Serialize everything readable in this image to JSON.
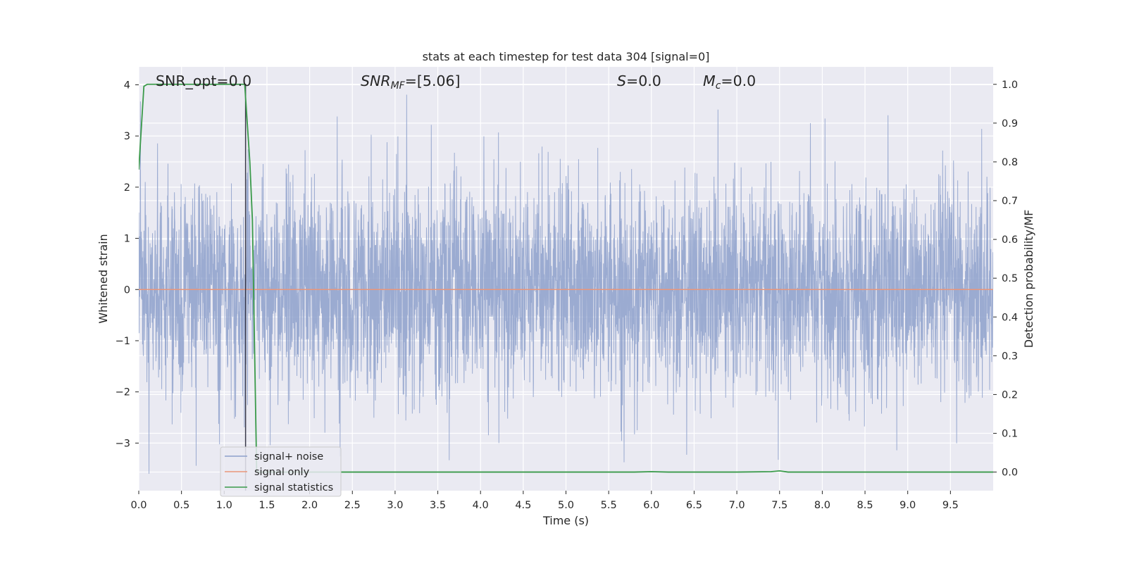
{
  "chart_data": {
    "type": "line",
    "title": "stats at each timestep for test data 304 [signal=0]",
    "xlabel": "Time (s)",
    "ylabel": "Whitened strain",
    "y2label": "Detection probability/MF",
    "xlim": [
      0.0,
      10.0
    ],
    "ylim": [
      -3.93,
      4.35
    ],
    "y2lim": [
      -0.048,
      1.045
    ],
    "x_ticks": [
      "0.0",
      "0.5",
      "1.0",
      "1.5",
      "2.0",
      "2.5",
      "3.0",
      "3.5",
      "4.0",
      "4.5",
      "5.0",
      "5.5",
      "6.0",
      "6.5",
      "7.0",
      "7.5",
      "8.0",
      "8.5",
      "9.0",
      "9.5"
    ],
    "y_ticks": [
      "−3",
      "−2",
      "−1",
      "0",
      "1",
      "2",
      "3",
      "4"
    ],
    "y2_ticks": [
      "0.0",
      "0.1",
      "0.2",
      "0.3",
      "0.4",
      "0.5",
      "0.6",
      "0.7",
      "0.8",
      "0.9",
      "1.0"
    ],
    "grid": true,
    "legend_position": "lower-left",
    "annotations": {
      "snr_opt": "SNR_opt=0.0",
      "snr_mf_var": "SNR",
      "snr_mf_sub": "MF",
      "snr_mf_value": "=[5.06]",
      "s_var": "S",
      "s_value": "=0.0",
      "mc_var": "M",
      "mc_sub": "c",
      "mc_value": "=0.0"
    },
    "marker_line_x": 1.25,
    "series": [
      {
        "name": "signal+ noise",
        "color": "#8da0cb",
        "axis": "left",
        "envelope": {
          "t_start": 0.0,
          "t_end": 10.0,
          "typical_min": -1.7,
          "typical_max": 1.7,
          "peak_max": 4.02,
          "peak_min": -3.6,
          "noise_sigma": 1.0
        }
      },
      {
        "name": "signal only",
        "color": "#e9967a",
        "axis": "left",
        "x": [
          0.0,
          10.0
        ],
        "values": [
          0.0,
          0.0
        ]
      },
      {
        "name": "signal statistics",
        "color": "#3a9a4a",
        "axis": "right",
        "x": [
          0.0,
          0.06,
          0.1,
          0.2,
          0.5,
          1.0,
          1.24,
          1.3,
          1.33,
          1.38,
          1.5,
          2.0,
          3.0,
          4.0,
          5.0,
          5.8,
          6.0,
          6.2,
          7.0,
          7.4,
          7.5,
          7.6,
          8.0,
          9.0,
          10.0
        ],
        "values": [
          0.78,
          0.995,
          1.0,
          1.0,
          1.0,
          1.0,
          1.0,
          0.8,
          0.65,
          0.0,
          0.0,
          0.0,
          0.0,
          0.0,
          0.0,
          0.0,
          0.001,
          0.0,
          0.0,
          0.001,
          0.003,
          0.0,
          0.0,
          0.0,
          0.0
        ]
      }
    ]
  }
}
